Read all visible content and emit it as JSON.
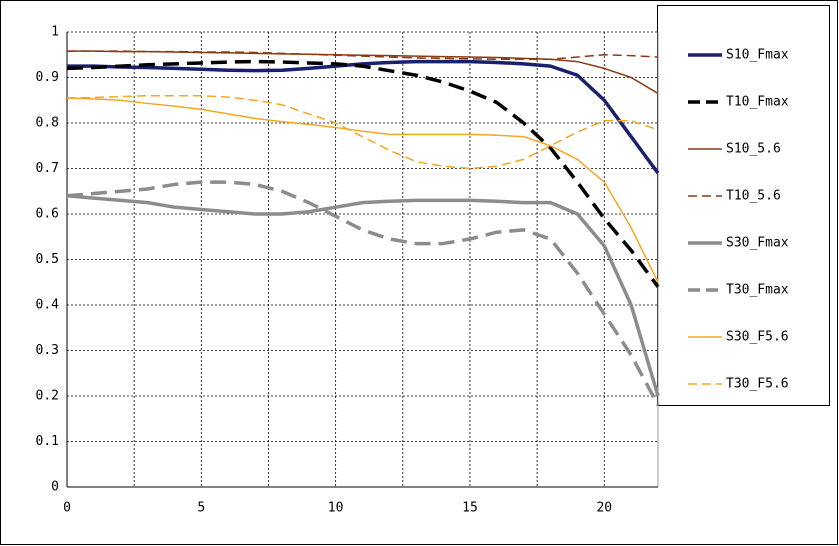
{
  "chart_data": {
    "type": "line",
    "x": [
      0,
      1,
      2,
      3,
      4,
      5,
      6,
      7,
      8,
      9,
      10,
      11,
      12,
      13,
      14,
      15,
      16,
      17,
      18,
      19,
      20,
      21,
      22
    ],
    "xlim": [
      0,
      22
    ],
    "xticks": [
      0,
      5,
      10,
      15,
      20
    ],
    "xminor": [
      2.5,
      7.5,
      12.5,
      17.5
    ],
    "ylim": [
      0,
      1
    ],
    "yticks": [
      0,
      0.1,
      0.2,
      0.3,
      0.4,
      0.5,
      0.6,
      0.7,
      0.8,
      0.9,
      1
    ],
    "grid": true,
    "legend": "right",
    "series": [
      {
        "name": "S10_Fmax",
        "color": "#1a1f6e",
        "width": 3.5,
        "dash": false,
        "values": [
          0.925,
          0.925,
          0.923,
          0.922,
          0.92,
          0.918,
          0.916,
          0.915,
          0.916,
          0.92,
          0.925,
          0.93,
          0.933,
          0.935,
          0.935,
          0.935,
          0.933,
          0.93,
          0.925,
          0.905,
          0.85,
          0.77,
          0.69
        ]
      },
      {
        "name": "T10_Fmax",
        "color": "#000000",
        "width": 3.5,
        "dash": true,
        "values": [
          0.92,
          0.922,
          0.925,
          0.928,
          0.93,
          0.932,
          0.934,
          0.935,
          0.934,
          0.932,
          0.93,
          0.925,
          0.915,
          0.905,
          0.89,
          0.87,
          0.845,
          0.8,
          0.745,
          0.67,
          0.59,
          0.52,
          0.44
        ]
      },
      {
        "name": "S10_5.6",
        "color": "#8b3a12",
        "width": 1.5,
        "dash": false,
        "values": [
          0.958,
          0.958,
          0.957,
          0.957,
          0.956,
          0.955,
          0.954,
          0.953,
          0.952,
          0.951,
          0.95,
          0.949,
          0.948,
          0.947,
          0.946,
          0.945,
          0.944,
          0.942,
          0.94,
          0.935,
          0.92,
          0.9,
          0.865
        ]
      },
      {
        "name": "T10_5.6",
        "color": "#8b3a12",
        "width": 1.5,
        "dash": true,
        "values": [
          0.958,
          0.958,
          0.958,
          0.957,
          0.957,
          0.956,
          0.956,
          0.955,
          0.953,
          0.951,
          0.949,
          0.947,
          0.945,
          0.943,
          0.942,
          0.941,
          0.94,
          0.94,
          0.94,
          0.945,
          0.95,
          0.948,
          0.945
        ]
      },
      {
        "name": "S30_Fmax",
        "color": "#8c8c8c",
        "width": 3.5,
        "dash": false,
        "values": [
          0.64,
          0.635,
          0.63,
          0.625,
          0.615,
          0.61,
          0.605,
          0.6,
          0.6,
          0.605,
          0.615,
          0.625,
          0.628,
          0.63,
          0.63,
          0.63,
          0.628,
          0.625,
          0.625,
          0.6,
          0.53,
          0.4,
          0.2
        ]
      },
      {
        "name": "T30_Fmax",
        "color": "#8c8c8c",
        "width": 3.5,
        "dash": true,
        "values": [
          0.64,
          0.645,
          0.65,
          0.655,
          0.665,
          0.67,
          0.67,
          0.665,
          0.65,
          0.625,
          0.595,
          0.565,
          0.545,
          0.535,
          0.535,
          0.545,
          0.56,
          0.565,
          0.545,
          0.47,
          0.38,
          0.29,
          0.18
        ]
      },
      {
        "name": "S30_F5.6",
        "color": "#f5a623",
        "width": 1.5,
        "dash": false,
        "values": [
          0.855,
          0.853,
          0.85,
          0.843,
          0.837,
          0.83,
          0.82,
          0.81,
          0.803,
          0.797,
          0.79,
          0.782,
          0.775,
          0.775,
          0.775,
          0.775,
          0.773,
          0.77,
          0.75,
          0.72,
          0.67,
          0.57,
          0.45
        ]
      },
      {
        "name": "T30_F5.6",
        "color": "#f5a623",
        "width": 1.5,
        "dash": true,
        "values": [
          0.855,
          0.856,
          0.858,
          0.86,
          0.86,
          0.86,
          0.857,
          0.85,
          0.84,
          0.82,
          0.8,
          0.77,
          0.74,
          0.715,
          0.705,
          0.7,
          0.705,
          0.72,
          0.75,
          0.78,
          0.805,
          0.805,
          0.785
        ]
      }
    ]
  }
}
